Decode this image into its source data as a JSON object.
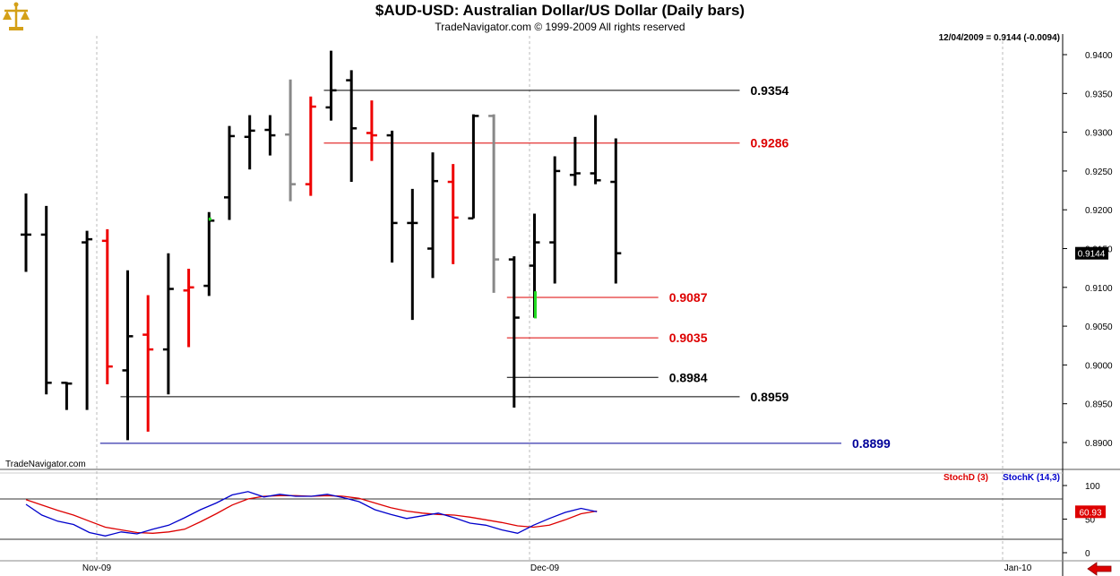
{
  "header": {
    "title": "$AUD-USD:  Australian Dollar/US Dollar  (Daily bars)",
    "subtitle": "TradeNavigator.com © 1999-2009 All rights reserved",
    "quote": "12/04/2009 = 0.9144 (-0.0094)",
    "watermark": "TradeNavigator.com"
  },
  "logo": {
    "icon": "scales-of-justice-icon",
    "color": "#d4a017"
  },
  "chart_data": [
    {
      "type": "ohlc",
      "name": "price",
      "title": "$AUD-USD:  Australian Dollar/US Dollar  (Daily bars)",
      "ylim": [
        0.8875,
        0.942
      ],
      "yticks": [
        "0.9400",
        "0.9350",
        "0.9300",
        "0.9250",
        "0.9200",
        "0.9150",
        "0.9100",
        "0.9050",
        "0.9000",
        "0.8950",
        "0.8900"
      ],
      "ytick_values": [
        0.94,
        0.935,
        0.93,
        0.925,
        0.92,
        0.915,
        0.91,
        0.905,
        0.9,
        0.895,
        0.89
      ],
      "last_price_label": "0.9144",
      "last_price": 0.9144,
      "xticks": [
        "Nov-09",
        "Dec-09",
        "Jan-10"
      ],
      "colors": {
        "black": "#000000",
        "red": "#ee0000",
        "gray": "#888888",
        "green": "#22dd22"
      },
      "bars": [
        {
          "o": 0.9168,
          "h": 0.9221,
          "l": 0.912,
          "c": 0.9168,
          "color": "black"
        },
        {
          "o": 0.9168,
          "h": 0.9205,
          "l": 0.8962,
          "c": 0.8977,
          "color": "black"
        },
        {
          "o": 0.8977,
          "h": 0.8978,
          "l": 0.8942,
          "c": 0.8976,
          "color": "black"
        },
        {
          "o": 0.9158,
          "h": 0.9173,
          "l": 0.8942,
          "c": 0.9162,
          "color": "black"
        },
        {
          "o": 0.916,
          "h": 0.9175,
          "l": 0.8975,
          "c": 0.8998,
          "color": "red"
        },
        {
          "o": 0.8993,
          "h": 0.9122,
          "l": 0.8903,
          "c": 0.9037,
          "color": "black"
        },
        {
          "o": 0.9039,
          "h": 0.909,
          "l": 0.8914,
          "c": 0.902,
          "color": "red"
        },
        {
          "o": 0.902,
          "h": 0.9144,
          "l": 0.8962,
          "c": 0.9098,
          "color": "black"
        },
        {
          "o": 0.9096,
          "h": 0.9124,
          "l": 0.9023,
          "c": 0.91,
          "color": "red"
        },
        {
          "o": 0.9102,
          "h": 0.9197,
          "l": 0.9089,
          "c": 0.9186,
          "color": "black"
        },
        {
          "o": 0.9216,
          "h": 0.9308,
          "l": 0.9187,
          "c": 0.9295,
          "color": "black"
        },
        {
          "o": 0.9294,
          "h": 0.9322,
          "l": 0.9252,
          "c": 0.9302,
          "color": "black"
        },
        {
          "o": 0.9303,
          "h": 0.9322,
          "l": 0.927,
          "c": 0.9296,
          "color": "black"
        },
        {
          "o": 0.9297,
          "h": 0.9368,
          "l": 0.9211,
          "c": 0.9233,
          "color": "gray"
        },
        {
          "o": 0.9233,
          "h": 0.9346,
          "l": 0.9218,
          "c": 0.9333,
          "color": "red"
        },
        {
          "o": 0.9332,
          "h": 0.9405,
          "l": 0.9315,
          "c": 0.9354,
          "color": "black"
        },
        {
          "o": 0.9367,
          "h": 0.938,
          "l": 0.9236,
          "c": 0.9305,
          "color": "black"
        },
        {
          "o": 0.9299,
          "h": 0.9341,
          "l": 0.9263,
          "c": 0.9296,
          "color": "red"
        },
        {
          "o": 0.9296,
          "h": 0.9302,
          "l": 0.9132,
          "c": 0.9183,
          "color": "black"
        },
        {
          "o": 0.9183,
          "h": 0.9227,
          "l": 0.9058,
          "c": 0.9183,
          "color": "black"
        },
        {
          "o": 0.915,
          "h": 0.9274,
          "l": 0.9112,
          "c": 0.9237,
          "color": "black"
        },
        {
          "o": 0.9236,
          "h": 0.9259,
          "l": 0.913,
          "c": 0.919,
          "color": "red"
        },
        {
          "o": 0.9189,
          "h": 0.9323,
          "l": 0.9189,
          "c": 0.9321,
          "color": "black"
        },
        {
          "o": 0.9321,
          "h": 0.9323,
          "l": 0.9093,
          "c": 0.9136,
          "color": "gray"
        },
        {
          "o": 0.9136,
          "h": 0.914,
          "l": 0.8945,
          "c": 0.9061,
          "color": "black"
        },
        {
          "o": 0.9128,
          "h": 0.9195,
          "l": 0.9061,
          "c": 0.9158,
          "color": "black"
        },
        {
          "o": 0.9158,
          "h": 0.9269,
          "l": 0.9105,
          "c": 0.925,
          "color": "black"
        },
        {
          "o": 0.9245,
          "h": 0.9294,
          "l": 0.9231,
          "c": 0.9247,
          "color": "black"
        },
        {
          "o": 0.9247,
          "h": 0.9322,
          "l": 0.9233,
          "c": 0.9238,
          "color": "black"
        },
        {
          "o": 0.9236,
          "h": 0.9292,
          "l": 0.9105,
          "c": 0.9144,
          "color": "black"
        }
      ],
      "green_marks": [
        {
          "bar": 9,
          "from": 0.9186,
          "to": 0.919
        },
        {
          "bar": 25,
          "from": 0.906,
          "to": 0.9095
        }
      ],
      "levels": [
        {
          "label": "0.9354",
          "value": 0.9354,
          "color": "#000000",
          "from_bar": 15,
          "to_bar": 35
        },
        {
          "label": "0.9286",
          "value": 0.9286,
          "color": "#dd0000",
          "from_bar": 15,
          "to_bar": 35
        },
        {
          "label": "0.9087",
          "value": 0.9087,
          "color": "#dd0000",
          "from_bar": 24,
          "to_bar": 31
        },
        {
          "label": "0.9035",
          "value": 0.9035,
          "color": "#dd0000",
          "from_bar": 24,
          "to_bar": 31
        },
        {
          "label": "0.8984",
          "value": 0.8984,
          "color": "#000000",
          "from_bar": 24,
          "to_bar": 31
        },
        {
          "label": "0.8959",
          "value": 0.8959,
          "color": "#000000",
          "from_bar": 5,
          "to_bar": 35
        },
        {
          "label": "0.8899",
          "value": 0.8899,
          "color": "#000099",
          "from_bar": 4,
          "to_bar": 40
        }
      ]
    },
    {
      "type": "line",
      "name": "stochastic",
      "ylim": [
        -5,
        110
      ],
      "yticks": [
        "100",
        "50",
        "0"
      ],
      "ytick_values": [
        100,
        50,
        0
      ],
      "reference_lines": [
        80,
        20
      ],
      "last_value_label": "60.93",
      "series": [
        {
          "name": "StochD (3)",
          "color": "#dd0000",
          "values": [
            79,
            71,
            63,
            56,
            47,
            38,
            34,
            30,
            29,
            31,
            35,
            46,
            58,
            71,
            80,
            84,
            85,
            85,
            84,
            85,
            84,
            81,
            74,
            67,
            62,
            59,
            57,
            56,
            53,
            49,
            45,
            40,
            38,
            41,
            49,
            58,
            62
          ]
        },
        {
          "name": "StochK (14,3)",
          "color": "#0000cc",
          "values": [
            72,
            56,
            47,
            42,
            30,
            25,
            31,
            28,
            35,
            41,
            52,
            64,
            74,
            86,
            91,
            83,
            87,
            84,
            84,
            87,
            82,
            76,
            64,
            57,
            51,
            55,
            59,
            52,
            44,
            41,
            34,
            29,
            41,
            51,
            60,
            66,
            61
          ]
        }
      ]
    }
  ]
}
